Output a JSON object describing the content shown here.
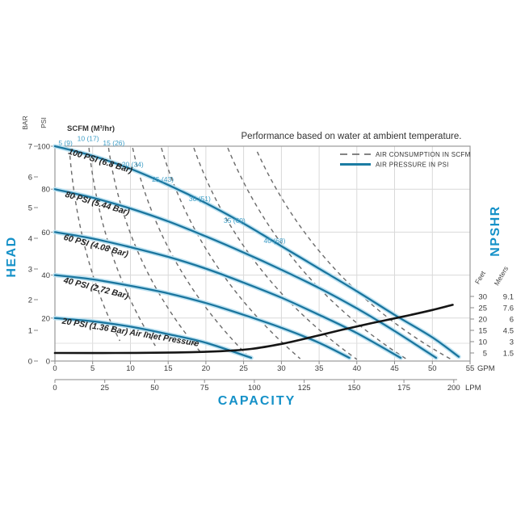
{
  "title": "Performance based on water at ambient temperature.",
  "scfm_header": "SCFM (M³/hr)",
  "legend": {
    "items": [
      {
        "label": "AIR CONSUMPTION IN SCFM",
        "style": "dashed",
        "color": "#5c5c5c"
      },
      {
        "label": "AIR PRESSURE IN PSI",
        "style": "solid",
        "color": "#1b7ca3"
      }
    ]
  },
  "axes": {
    "head": {
      "title": "HEAD",
      "bar_label": "BAR",
      "bar_ticks": [
        7,
        6,
        5,
        4,
        3,
        2,
        1,
        0
      ],
      "psi_label": "PSI",
      "psi_ticks": [
        100,
        80,
        60,
        40,
        20,
        0
      ]
    },
    "capacity": {
      "title": "CAPACITY",
      "gpm_ticks": [
        0,
        5,
        10,
        15,
        20,
        25,
        30,
        35,
        40,
        45,
        50,
        55
      ],
      "gpm_unit": "GPM",
      "lpm_ticks": [
        0,
        25,
        50,
        75,
        100,
        125,
        150,
        175,
        200
      ],
      "lpm_unit": "LPM"
    },
    "npshr": {
      "title": "NPSHR",
      "feet_header": "Feet",
      "feet_ticks": [
        30,
        25,
        20,
        15,
        10,
        5
      ],
      "meters_header": "Meters",
      "meters_ticks": [
        "9.1",
        "7.6",
        "6",
        "4.5",
        "3",
        "1.5"
      ]
    }
  },
  "colors": {
    "accent_blue": "#1591c8",
    "curve_blue": "#1a759e",
    "curve_halo": "#bfe3f2",
    "npshr_black": "#151515",
    "dashed_gray": "#6a6a6a",
    "scfm_label_blue": "#3d9dc6"
  },
  "chart_data": {
    "type": "line",
    "title": "Performance based on water at ambient temperature.",
    "x_axis": {
      "label": "CAPACITY",
      "units": [
        "GPM",
        "LPM"
      ],
      "gpm_range": [
        0,
        55
      ],
      "lpm_range": [
        0,
        208
      ],
      "grid_step_gpm": 5
    },
    "y_axis": {
      "label": "HEAD",
      "units": [
        "BAR",
        "PSI"
      ],
      "bar_range": [
        0,
        7
      ],
      "psi_range": [
        0,
        100
      ],
      "grid_step_psi": 20
    },
    "npshr_axis": {
      "label": "NPSHR",
      "units": [
        "Feet",
        "Meters"
      ],
      "feet_range": [
        5,
        30
      ]
    },
    "pressure_curves": [
      {
        "psi": 100,
        "label": "100 PSI (6.8 Bar)",
        "label_at_gpm_psi": [
          1.7,
          96.5
        ],
        "points_gpm_psi": [
          [
            0,
            100
          ],
          [
            5,
            95.5
          ],
          [
            10,
            89.5
          ],
          [
            15,
            82
          ],
          [
            20,
            73.5
          ],
          [
            25,
            64
          ],
          [
            30,
            53.5
          ],
          [
            35,
            43
          ],
          [
            40,
            32.5
          ],
          [
            45,
            21.5
          ],
          [
            50,
            11
          ],
          [
            53.5,
            2
          ]
        ]
      },
      {
        "psi": 80,
        "label": "80 PSI (5.44 Bar)",
        "label_at_gpm_psi": [
          1.3,
          76.5
        ],
        "points_gpm_psi": [
          [
            0,
            80
          ],
          [
            5,
            76
          ],
          [
            10,
            71
          ],
          [
            15,
            65
          ],
          [
            20,
            58
          ],
          [
            25,
            50.5
          ],
          [
            30,
            42.5
          ],
          [
            35,
            34
          ],
          [
            40,
            24.5
          ],
          [
            45,
            14
          ],
          [
            50.5,
            1.5
          ]
        ]
      },
      {
        "psi": 60,
        "label": "60 PSI (4.08 Bar)",
        "label_at_gpm_psi": [
          1.1,
          56.5
        ],
        "points_gpm_psi": [
          [
            0,
            60
          ],
          [
            5,
            57
          ],
          [
            10,
            53
          ],
          [
            15,
            48.5
          ],
          [
            20,
            43
          ],
          [
            25,
            36.5
          ],
          [
            30,
            29.5
          ],
          [
            35,
            21.5
          ],
          [
            40,
            13
          ],
          [
            45.8,
            1.5
          ]
        ]
      },
      {
        "psi": 40,
        "label": "40 PSI (2.72 Bar)",
        "label_at_gpm_psi": [
          1.1,
          36.5
        ],
        "points_gpm_psi": [
          [
            0,
            40
          ],
          [
            5,
            38
          ],
          [
            10,
            35
          ],
          [
            15,
            31.5
          ],
          [
            20,
            27
          ],
          [
            25,
            21.5
          ],
          [
            30,
            15.5
          ],
          [
            35,
            8.5
          ],
          [
            39,
            1.5
          ]
        ]
      },
      {
        "psi": 20,
        "label": "20 PSI (1.36 Bar)  Air Inlet Pressure",
        "label_at_gpm_psi": [
          0.9,
          17.5
        ],
        "points_gpm_psi": [
          [
            0,
            20
          ],
          [
            5,
            18.5
          ],
          [
            10,
            16
          ],
          [
            15,
            12.5
          ],
          [
            20,
            8.5
          ],
          [
            26,
            1.5
          ]
        ]
      }
    ],
    "air_consumption_curves": [
      {
        "scfm": 5,
        "m3hr": 9,
        "label": "5 (9)",
        "label_at_gpm_psi": [
          1.4,
          101.5
        ],
        "bezier_gpm_psi": [
          [
            1.9,
            99.2
          ],
          [
            3.0,
            47.7
          ],
          [
            8.6,
            9.4
          ]
        ]
      },
      {
        "scfm": 10,
        "m3hr": 17,
        "label": "10 (17)",
        "label_at_gpm_psi": [
          4.4,
          103.5
        ],
        "bezier_gpm_psi": [
          [
            4.5,
            99.2
          ],
          [
            6.1,
            47.7
          ],
          [
            13.3,
            7.1
          ]
        ]
      },
      {
        "scfm": 15,
        "m3hr": 26,
        "label": "15 (26)",
        "label_at_gpm_psi": [
          7.8,
          101.5
        ],
        "bezier_gpm_psi": [
          [
            7.1,
            99.2
          ],
          [
            9.3,
            45.9
          ],
          [
            19.3,
            4.1
          ]
        ]
      },
      {
        "scfm": 20,
        "m3hr": 34,
        "label": "20 (34)",
        "label_at_gpm_psi": [
          10.3,
          91.5
        ],
        "bezier_gpm_psi": [
          [
            10.3,
            99.2
          ],
          [
            13.7,
            44.0
          ],
          [
            25.7,
            1.9
          ]
        ]
      },
      {
        "scfm": 25,
        "m3hr": 43,
        "label": "25 (43)",
        "label_at_gpm_psi": [
          14.3,
          84.5
        ],
        "bezier_gpm_psi": [
          [
            14.1,
            99.2
          ],
          [
            18.9,
            42.1
          ],
          [
            32.5,
            1.1
          ]
        ]
      },
      {
        "scfm": 30,
        "m3hr": 51,
        "label": "30 (51)",
        "label_at_gpm_psi": [
          19.2,
          75.5
        ],
        "bezier_gpm_psi": [
          [
            18.4,
            99.2
          ],
          [
            24.3,
            40.2
          ],
          [
            40.0,
            0.8
          ]
        ]
      },
      {
        "scfm": 35,
        "m3hr": 60,
        "label": "35 (60)",
        "label_at_gpm_psi": [
          23.8,
          65.5
        ],
        "bezier_gpm_psi": [
          [
            22.9,
            99.2
          ],
          [
            30.2,
            37.2
          ],
          [
            46.8,
            0.4
          ]
        ]
      },
      {
        "scfm": 40,
        "m3hr": 68,
        "label": "40 (68)",
        "label_at_gpm_psi": [
          29.1,
          56.0
        ],
        "bezier_gpm_psi": [
          [
            26.8,
            97.4
          ],
          [
            35.0,
            34.6
          ],
          [
            52.7,
            0.4
          ]
        ]
      }
    ],
    "npshr_curve": {
      "points_gpm_feet": [
        [
          0,
          5
        ],
        [
          8,
          5
        ],
        [
          16,
          5.2
        ],
        [
          22,
          5.8
        ],
        [
          26,
          6.8
        ],
        [
          30,
          9
        ],
        [
          34,
          12
        ],
        [
          38,
          15.2
        ],
        [
          42,
          18.2
        ],
        [
          46,
          21
        ],
        [
          50,
          24
        ],
        [
          52.7,
          26.3
        ]
      ]
    }
  }
}
